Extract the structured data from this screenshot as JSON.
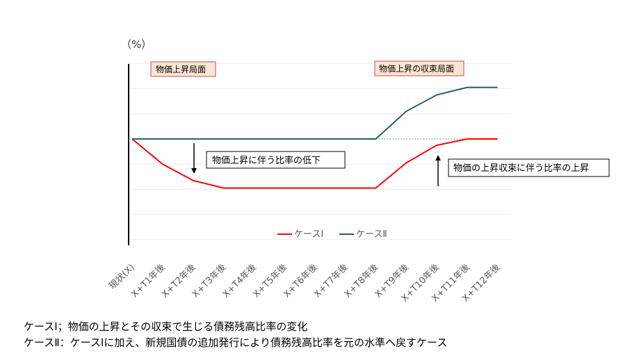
{
  "chart_data": {
    "type": "line",
    "ylabel": "（%）",
    "categories": [
      "現状(X)",
      "X+T1年後",
      "X+T2年後",
      "X+T3年後",
      "X+T4年後",
      "X+T5年後",
      "X+T6年後",
      "X+T7年後",
      "X+T8年後",
      "X+T9年後",
      "X+T10年後",
      "X+T11年後",
      "X+T12年後"
    ],
    "series": [
      {
        "name": "ケースⅠ",
        "color": "#ff0000",
        "values": [
          0,
          -2.0,
          -3.3,
          -3.9,
          -3.9,
          -3.9,
          -3.9,
          -3.9,
          -3.9,
          -1.9,
          -0.5,
          0,
          0
        ]
      },
      {
        "name": "ケースⅡ",
        "color": "#215f74",
        "values": [
          0,
          0,
          0,
          0,
          0,
          0,
          0,
          0,
          0,
          2.2,
          3.5,
          4.1,
          4.1
        ]
      }
    ],
    "ylim": [
      -8,
      6
    ],
    "grid": true,
    "legend": "bottom",
    "annotations": {
      "phase_rise": "物価上昇局面",
      "phase_converge": "物価上昇の収束局面",
      "ratio_fall": "物価上昇に伴う比率の低下",
      "ratio_rise": "物価の上昇収束に伴う比率の上昇"
    }
  },
  "captions": [
    "ケースⅠ；物価の上昇とその収束で生じる債務残高比率の変化",
    "ケースⅡ：ケースⅠに加え、新規国債の追加発行により債務残高比率を元の水準へ戻すケース"
  ]
}
